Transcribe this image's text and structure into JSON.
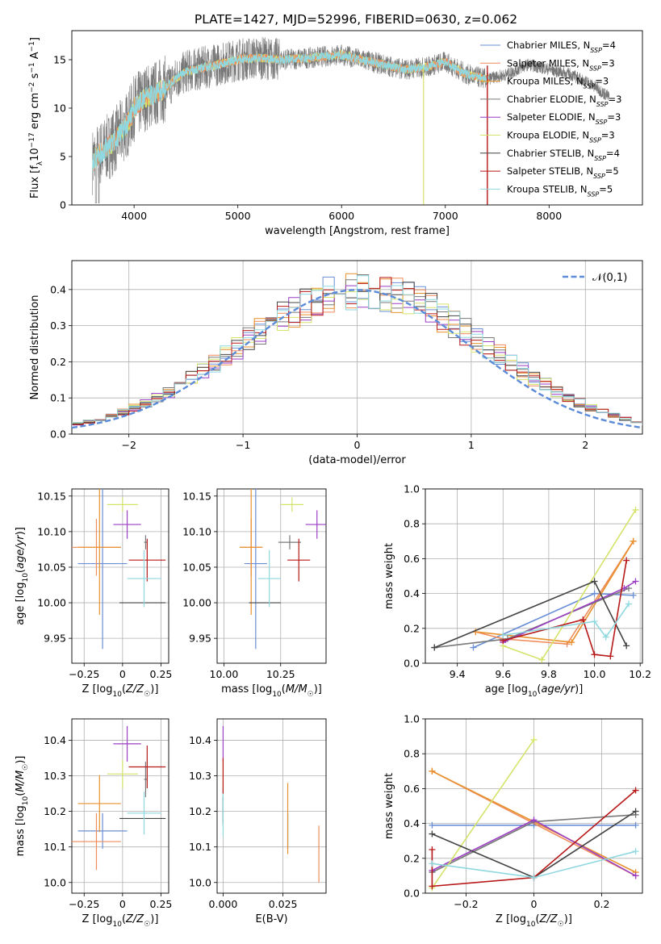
{
  "figure_title": "PLATE=1427, MJD=52996, FIBERID=0630, z=0.062",
  "colors": {
    "grid": "#b0b0b0",
    "models": [
      "#6a8fd6",
      "#ef8c5a",
      "#e8912e",
      "#7a7a7a",
      "#9b3fc4",
      "#d6e36b",
      "#444444",
      "#b81818",
      "#8fd8e0"
    ],
    "normal": "#5b8bd9"
  },
  "chart_data": [
    {
      "id": "spectrum",
      "type": "line",
      "xlabel": "wavelength [Angstrom, rest frame]",
      "ylabel": "Flux [f_λ10^-17 erg cm^-2 s^-1 A^-1]",
      "xlim": [
        3400,
        8900
      ],
      "ylim": [
        0,
        18
      ],
      "xticks": [
        4000,
        5000,
        6000,
        7000,
        8000
      ],
      "yticks": [
        0,
        5,
        10,
        15
      ],
      "continuum": {
        "x": [
          3600,
          3650,
          3700,
          3800,
          3900,
          3950,
          4000,
          4100,
          4200,
          4300,
          4400,
          4500,
          4600,
          4800,
          5000,
          5200,
          5400,
          5600,
          5800,
          6000,
          6200,
          6400,
          6600,
          6800,
          7000,
          7200,
          7400,
          7600,
          7800,
          8000,
          8200,
          8400,
          8600
        ],
        "y": [
          4.5,
          5.2,
          5.5,
          6.5,
          7.8,
          8.6,
          10.0,
          11.0,
          11.5,
          12.0,
          13.0,
          13.8,
          14.0,
          14.5,
          15.0,
          15.2,
          15.0,
          15.1,
          15.3,
          15.5,
          15.0,
          14.5,
          14.0,
          14.2,
          14.8,
          13.5,
          13.0,
          13.5,
          14.5,
          14.0,
          13.5,
          12.5,
          11.0
        ]
      },
      "legend": [
        {
          "name": "Chabrier MILES, N",
          "sub": "SSP",
          "eq": "=4"
        },
        {
          "name": "Salpeter MILES, N",
          "sub": "SSP",
          "eq": "=3"
        },
        {
          "name": "Kroupa MILES, N",
          "sub": "SSP",
          "eq": "=3"
        },
        {
          "name": "Chabrier ELODIE, N",
          "sub": "SSP",
          "eq": "=3"
        },
        {
          "name": "Salpeter ELODIE, N",
          "sub": "SSP",
          "eq": "=3"
        },
        {
          "name": "Kroupa ELODIE, N",
          "sub": "SSP",
          "eq": "=3"
        },
        {
          "name": "Chabrier STELIB, N",
          "sub": "SSP",
          "eq": "=4"
        },
        {
          "name": "Salpeter STELIB, N",
          "sub": "SSP",
          "eq": "=5"
        },
        {
          "name": "Kroupa STELIB, N",
          "sub": "SSP",
          "eq": "=5"
        }
      ]
    },
    {
      "id": "residuals",
      "type": "histogram",
      "xlabel": "(data-model)/error",
      "ylabel": "Normed distribution",
      "xlim": [
        -2.5,
        2.5
      ],
      "ylim": [
        0,
        0.48
      ],
      "xticks": [
        -2,
        -1,
        0,
        1,
        2
      ],
      "yticks": [
        0.0,
        0.1,
        0.2,
        0.3,
        0.4
      ],
      "bin_width": 0.1,
      "legend_label": "𝒩(0,1)"
    },
    {
      "id": "age_vs_Z",
      "type": "errorbar",
      "xlabel": "Z [log10(Z/Z☉)]",
      "ylabel": "age [log10(age/yr)]",
      "xlim": [
        -0.33,
        0.3
      ],
      "ylim": [
        9.915,
        10.16
      ],
      "xticks": [
        -0.25,
        0.0,
        0.25
      ],
      "yticks": [
        9.95,
        10.0,
        10.05,
        10.1,
        10.15
      ],
      "points": [
        {
          "x": -0.13,
          "xerr": 0.16,
          "y": 10.055,
          "yerr": 0.12,
          "c": 0
        },
        {
          "x": -0.17,
          "xerr": 0.16,
          "y": 10.078,
          "yerr": 0.04,
          "c": 1
        },
        {
          "x": -0.15,
          "xerr": 0.14,
          "y": 10.078,
          "yerr": 0.095,
          "c": 2
        },
        {
          "x": 0.15,
          "xerr": 0.01,
          "y": 10.085,
          "yerr": 0.01,
          "c": 3
        },
        {
          "x": 0.03,
          "xerr": 0.09,
          "y": 10.11,
          "yerr": 0.02,
          "c": 4
        },
        {
          "x": 0.0,
          "xerr": 0.1,
          "y": 10.138,
          "yerr": 0.01,
          "c": 5
        },
        {
          "x": 0.13,
          "xerr": 0.15,
          "y": 10.0,
          "yerr": 0.0,
          "c": 6
        },
        {
          "x": 0.16,
          "xerr": 0.12,
          "y": 10.06,
          "yerr": 0.03,
          "c": 7
        },
        {
          "x": 0.14,
          "xerr": 0.11,
          "y": 10.034,
          "yerr": 0.04,
          "c": 8
        }
      ]
    },
    {
      "id": "age_vs_mass",
      "type": "errorbar",
      "xlabel": "mass [log10(M/M☉)]",
      "ylabel": "",
      "xlim": [
        9.97,
        10.45
      ],
      "ylim": [
        9.915,
        10.16
      ],
      "xticks": [
        10.0,
        10.25
      ],
      "yticks": [
        9.95,
        10.0,
        10.05,
        10.1,
        10.15
      ],
      "points": [
        {
          "x": 10.14,
          "xerr": 0.05,
          "y": 10.055,
          "yerr": 0.12,
          "c": 0
        },
        {
          "x": 10.12,
          "xerr": 0.05,
          "y": 10.078,
          "yerr": 0.04,
          "c": 1
        },
        {
          "x": 10.12,
          "xerr": 0.05,
          "y": 10.078,
          "yerr": 0.095,
          "c": 2
        },
        {
          "x": 10.29,
          "xerr": 0.05,
          "y": 10.085,
          "yerr": 0.01,
          "c": 3
        },
        {
          "x": 10.41,
          "xerr": 0.05,
          "y": 10.11,
          "yerr": 0.02,
          "c": 4
        },
        {
          "x": 10.3,
          "xerr": 0.05,
          "y": 10.138,
          "yerr": 0.01,
          "c": 5
        },
        {
          "x": 10.18,
          "xerr": 0.07,
          "y": 10.0,
          "yerr": 0.0,
          "c": 6
        },
        {
          "x": 10.33,
          "xerr": 0.05,
          "y": 10.06,
          "yerr": 0.03,
          "c": 7
        },
        {
          "x": 10.2,
          "xerr": 0.05,
          "y": 10.034,
          "yerr": 0.04,
          "c": 8
        }
      ]
    },
    {
      "id": "weight_vs_age",
      "type": "line",
      "xlabel": "age [log10(age/yr)]",
      "ylabel": "mass weight",
      "xlim": [
        9.26,
        10.21
      ],
      "ylim": [
        0,
        1
      ],
      "xticks": [
        9.4,
        9.6,
        9.8,
        10.0,
        10.2
      ],
      "yticks": [
        0.0,
        0.2,
        0.4,
        0.6,
        0.8,
        1.0
      ],
      "series": [
        {
          "c": 0,
          "x": [
            9.47,
            10.0,
            10.17
          ],
          "y": [
            0.09,
            0.4,
            0.39
          ]
        },
        {
          "c": 1,
          "x": [
            9.48,
            9.6,
            9.88,
            10.17
          ],
          "y": [
            0.18,
            0.14,
            0.11,
            0.7
          ]
        },
        {
          "c": 2,
          "x": [
            9.48,
            9.9,
            10.17
          ],
          "y": [
            0.18,
            0.12,
            0.7
          ]
        },
        {
          "c": 3,
          "x": [
            9.3,
            9.62,
            10.15
          ],
          "y": [
            0.09,
            0.14,
            0.43
          ]
        },
        {
          "c": 4,
          "x": [
            9.6,
            10.13,
            10.18
          ],
          "y": [
            0.12,
            0.43,
            0.47
          ]
        },
        {
          "c": 5,
          "x": [
            9.6,
            9.77,
            10.18
          ],
          "y": [
            0.1,
            0.02,
            0.88
          ]
        },
        {
          "c": 6,
          "x": [
            9.3,
            10.0,
            10.14
          ],
          "y": [
            0.09,
            0.47,
            0.1
          ]
        },
        {
          "c": 7,
          "x": [
            9.6,
            9.95,
            10.0,
            10.07,
            10.14
          ],
          "y": [
            0.13,
            0.25,
            0.05,
            0.04,
            0.59
          ]
        },
        {
          "c": 8,
          "x": [
            9.6,
            10.0,
            10.05,
            10.15
          ],
          "y": [
            0.16,
            0.24,
            0.15,
            0.34
          ]
        }
      ]
    },
    {
      "id": "mass_vs_Z",
      "type": "errorbar",
      "xlabel": "Z [log10(Z/Z☉)]",
      "ylabel": "mass [log10(M/M☉)]",
      "xlim": [
        -0.33,
        0.3
      ],
      "ylim": [
        9.97,
        10.46
      ],
      "xticks": [
        -0.25,
        0.0,
        0.25
      ],
      "yticks": [
        10.0,
        10.1,
        10.2,
        10.3,
        10.4
      ],
      "points": [
        {
          "x": -0.13,
          "xerr": 0.16,
          "y": 10.145,
          "yerr": 0.05,
          "c": 0
        },
        {
          "x": -0.17,
          "xerr": 0.16,
          "y": 10.115,
          "yerr": 0.08,
          "c": 1
        },
        {
          "x": -0.15,
          "xerr": 0.14,
          "y": 10.222,
          "yerr": 0.08,
          "c": 2
        },
        {
          "x": 0.15,
          "xerr": 0.01,
          "y": 10.29,
          "yerr": 0.05,
          "c": 3
        },
        {
          "x": 0.03,
          "xerr": 0.09,
          "y": 10.39,
          "yerr": 0.05,
          "c": 4
        },
        {
          "x": 0.0,
          "xerr": 0.1,
          "y": 10.305,
          "yerr": 0.04,
          "c": 5
        },
        {
          "x": 0.13,
          "xerr": 0.15,
          "y": 10.18,
          "yerr": 0.0,
          "c": 6
        },
        {
          "x": 0.16,
          "xerr": 0.12,
          "y": 10.325,
          "yerr": 0.06,
          "c": 7
        },
        {
          "x": 0.14,
          "xerr": 0.11,
          "y": 10.195,
          "yerr": 0.06,
          "c": 8
        }
      ]
    },
    {
      "id": "mass_vs_ebv",
      "type": "errorbar",
      "xlabel": "E(B-V)",
      "ylabel": "",
      "xlim": [
        -0.0025,
        0.043
      ],
      "ylim": [
        9.97,
        10.46
      ],
      "xticks": [
        0.0,
        0.025
      ],
      "yticks": [
        10.0,
        10.1,
        10.2,
        10.3,
        10.4
      ],
      "points": [
        {
          "x": 0.027,
          "xerr": 0,
          "y": 10.145,
          "yerr": 0.05,
          "c": 0
        },
        {
          "x": 0.04,
          "xerr": 0,
          "y": 10.08,
          "yerr": 0.08,
          "c": 1
        },
        {
          "x": 0.027,
          "xerr": 0,
          "y": 10.18,
          "yerr": 0.1,
          "c": 2
        },
        {
          "x": 0.0,
          "xerr": 0,
          "y": 10.22,
          "yerr": 0.05,
          "c": 3
        },
        {
          "x": 0.0,
          "xerr": 0,
          "y": 10.39,
          "yerr": 0.05,
          "c": 4
        },
        {
          "x": 0.0,
          "xerr": 0,
          "y": 10.305,
          "yerr": 0.04,
          "c": 5
        },
        {
          "x": 0.0,
          "xerr": 0,
          "y": 10.2,
          "yerr": 0.04,
          "c": 6
        },
        {
          "x": 0.0,
          "xerr": 0,
          "y": 10.3,
          "yerr": 0.05,
          "c": 7
        },
        {
          "x": 0.0,
          "xerr": 0,
          "y": 10.19,
          "yerr": 0.06,
          "c": 8
        }
      ]
    },
    {
      "id": "weight_vs_Z",
      "type": "line",
      "xlabel": "Z [log10(Z/Z☉)]",
      "ylabel": "mass weight",
      "xlim": [
        -0.32,
        0.32
      ],
      "ylim": [
        0,
        1
      ],
      "xticks": [
        -0.2,
        0.0,
        0.2
      ],
      "yticks": [
        0.0,
        0.2,
        0.4,
        0.6,
        0.8,
        1.0
      ],
      "series": [
        {
          "c": 0,
          "x": [
            -0.3,
            0.0,
            0.3
          ],
          "y": [
            0.39,
            0.39,
            0.39
          ]
        },
        {
          "c": 1,
          "x": [
            -0.3,
            -0.3,
            0.3
          ],
          "y": [
            0.7,
            0.7,
            0.1
          ]
        },
        {
          "c": 2,
          "x": [
            -0.3,
            0.0,
            0.3
          ],
          "y": [
            0.7,
            0.41,
            0.12
          ]
        },
        {
          "c": 3,
          "x": [
            -0.3,
            0.0,
            0.3
          ],
          "y": [
            0.12,
            0.41,
            0.45
          ]
        },
        {
          "c": 4,
          "x": [
            -0.3,
            0.0,
            0.3
          ],
          "y": [
            0.13,
            0.42,
            0.1
          ]
        },
        {
          "c": 5,
          "x": [
            -0.3,
            0.0
          ],
          "y": [
            0.03,
            0.88
          ]
        },
        {
          "c": 6,
          "x": [
            -0.3,
            0.0,
            0.3
          ],
          "y": [
            0.34,
            0.09,
            0.47
          ]
        },
        {
          "c": 7,
          "x": [
            -0.3,
            -0.3,
            0.0,
            0.3
          ],
          "y": [
            0.25,
            0.04,
            0.09,
            0.59
          ]
        },
        {
          "c": 8,
          "x": [
            -0.3,
            0.0,
            0.3
          ],
          "y": [
            0.17,
            0.09,
            0.24
          ]
        }
      ]
    }
  ]
}
